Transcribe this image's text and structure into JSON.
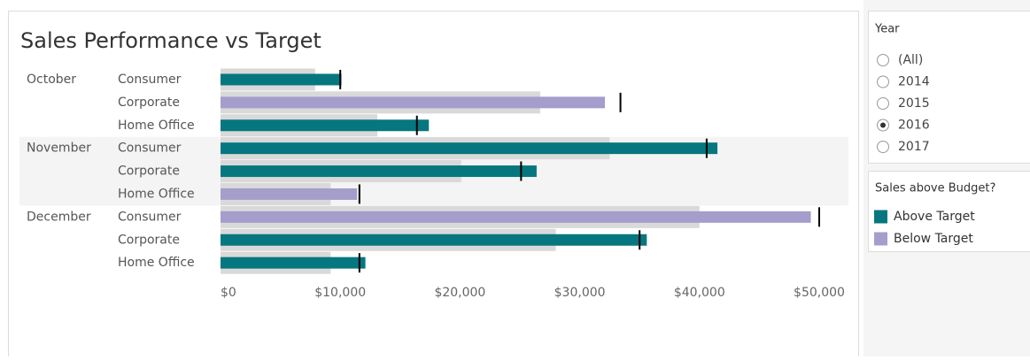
{
  "chart_data": {
    "type": "bullet",
    "title": "Sales Performance vs Target",
    "groups": [
      "October",
      "November",
      "December"
    ],
    "categories": [
      "Consumer",
      "Corporate",
      "Home Office",
      "Consumer",
      "Corporate",
      "Home Office",
      "Consumer",
      "Corporate",
      "Home Office"
    ],
    "values": [
      10100,
      32100,
      17400,
      41500,
      26400,
      11400,
      49300,
      35600,
      12100
    ],
    "bands": [
      7900,
      26700,
      13100,
      32500,
      20100,
      9200,
      40000,
      28000,
      9200
    ],
    "targets": [
      10000,
      33400,
      16400,
      40600,
      25100,
      11600,
      50000,
      35000,
      11600
    ],
    "band_color": "#d9d9d9",
    "target_color": "#000000",
    "xlim": [
      0,
      52400
    ],
    "xticks": [
      {
        "value": 0,
        "label": "$0"
      },
      {
        "value": 10000,
        "label": "$10,000"
      },
      {
        "value": 20000,
        "label": "$20,000"
      },
      {
        "value": 30000,
        "label": "$30,000"
      },
      {
        "value": 40000,
        "label": "$40,000"
      },
      {
        "value": 50000,
        "label": "$50,000"
      }
    ],
    "legend": {
      "title": "Sales above Budget?",
      "items": [
        {
          "label": "Above Target",
          "color": "#07777f"
        },
        {
          "label": "Below Target",
          "color": "#a59dcb"
        }
      ]
    }
  },
  "filter": {
    "title": "Year",
    "options": [
      "(All)",
      "2014",
      "2015",
      "2016",
      "2017"
    ],
    "selected": 3
  }
}
